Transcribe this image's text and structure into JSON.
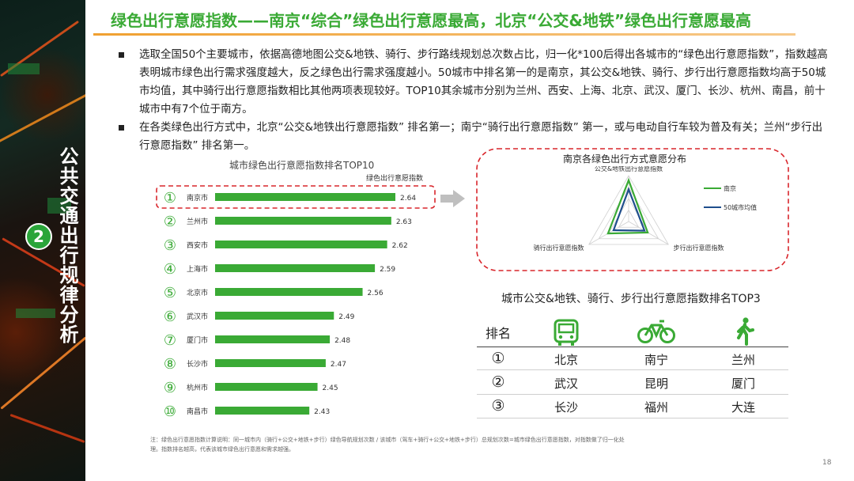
{
  "sidebar": {
    "section_number": "2",
    "section_title": "公共交通出行规律分析"
  },
  "header": {
    "title": "绿色出行意愿指数——南京“综合”绿色出行意愿最高，北京“公交&地铁”绿色出行意愿最高"
  },
  "bullets": [
    "选取全国50个主要城市，依据高德地图公交&地铁、骑行、步行路线规划总次数占比，归一化*100后得出各城市的“绿色出行意愿指数”，指数越高表明城市绿色出行需求强度越大，反之绿色出行需求强度越小。50城市中排名第一的是南京，其公交&地铁、骑行、步行出行意愿指数均高于50城市均值，其中骑行出行意愿指数相比其他两项表现较好。TOP10其余城市分别为兰州、西安、上海、北京、武汉、厦门、长沙、杭州、南昌，前十城市中有7个位于南方。",
    "在各类绿色出行方式中，北京“公交&地铁出行意愿指数” 排名第一；南宁“骑行出行意愿指数” 第一，或与电动自行车较为普及有关；兰州“步行出行意愿指数” 排名第一。"
  ],
  "chart_data": [
    {
      "type": "bar",
      "title": "城市绿色出行意愿指数排名TOP10",
      "legend": "绿色出行意愿指数",
      "categories": [
        "南京市",
        "兰州市",
        "西安市",
        "上海市",
        "北京市",
        "武汉市",
        "厦门市",
        "长沙市",
        "杭州市",
        "南昌市"
      ],
      "ranks": [
        "①",
        "②",
        "③",
        "④",
        "⑤",
        "⑥",
        "⑦",
        "⑧",
        "⑨",
        "⑩"
      ],
      "values": [
        2.64,
        2.63,
        2.62,
        2.59,
        2.56,
        2.49,
        2.48,
        2.47,
        2.45,
        2.43
      ],
      "highlighted": "南京市",
      "color": "#3aaa35",
      "highlight_color": "#d9262c"
    },
    {
      "type": "radar",
      "title": "南京各绿色出行方式意愿分布",
      "axes": [
        "公交&地铁出行意愿指数",
        "骑行出行意愿指数",
        "步行出行意愿指数"
      ],
      "series": [
        {
          "name": "南京",
          "values": [
            0.9,
            0.52,
            0.48
          ],
          "color": "#3aaa35"
        },
        {
          "name": "50城市均值",
          "values": [
            0.7,
            0.38,
            0.4
          ],
          "color": "#1f4e8c"
        }
      ]
    }
  ],
  "arrow_color": "#bfbfbf",
  "ranking_table": {
    "title": "城市公交&地铁、骑行、步行出行意愿指数排名TOP3",
    "header": "排名",
    "icons": [
      "bus-icon",
      "bicycle-icon",
      "walking-icon"
    ],
    "rows": [
      {
        "rank": "①",
        "bus": "北京",
        "bike": "南宁",
        "walk": "兰州"
      },
      {
        "rank": "②",
        "bus": "武汉",
        "bike": "昆明",
        "walk": "厦门"
      },
      {
        "rank": "③",
        "bus": "长沙",
        "bike": "福州",
        "walk": "大连"
      }
    ]
  },
  "footnote": "注：绿色出行意愿指数计算说明：同一城市内（骑行+公交+地铁+步行）绿色导航规划次数 / 该城市（驾车+骑行+公交+地铁+步行）总规划次数=城市绿色出行意愿指数，对指数做了归一化处理。指数排名越高，代表该城市绿色出行意愿和需求越强。",
  "page_number": "18"
}
